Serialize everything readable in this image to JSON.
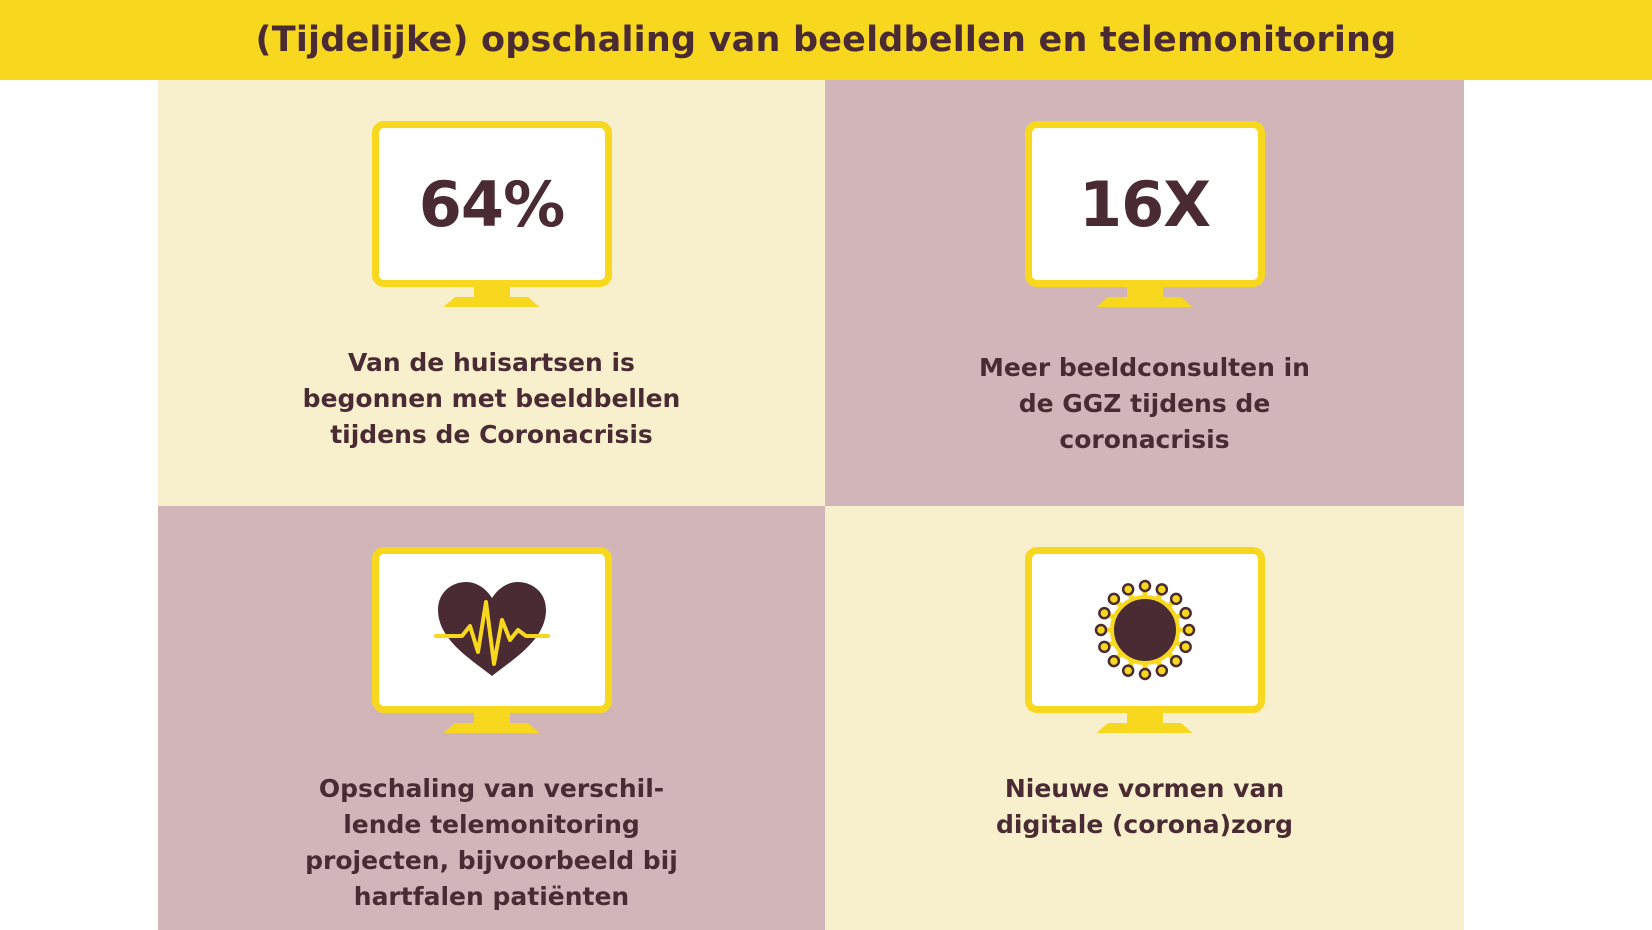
{
  "header": {
    "title": "(Tijdelijke) opschaling van beeldbellen en telemonitoring"
  },
  "colors": {
    "yellow": "#f8d71f",
    "dark": "#4a2b33",
    "cream": "#f8f0cc",
    "mauve": "#d2b5b8"
  },
  "panels": [
    {
      "stat": "64%",
      "icon": "monitor-icon",
      "caption": [
        "Van de huisartsen is",
        "begonnen met beeldbellen",
        "tijdens de Coronacrisis"
      ]
    },
    {
      "stat": "16X",
      "icon": "monitor-icon",
      "caption": [
        "Meer beeldconsulten in",
        "de GGZ tijdens de",
        "coronacrisis"
      ]
    },
    {
      "icon": "heart-pulse-icon",
      "caption": [
        "Opschaling van verschil-",
        "lende telemonitoring",
        "projecten, bijvoorbeeld bij",
        "hartfalen patiënten"
      ]
    },
    {
      "icon": "virus-icon",
      "caption": [
        "Nieuwe vormen van",
        "digitale (corona)zorg"
      ]
    }
  ]
}
